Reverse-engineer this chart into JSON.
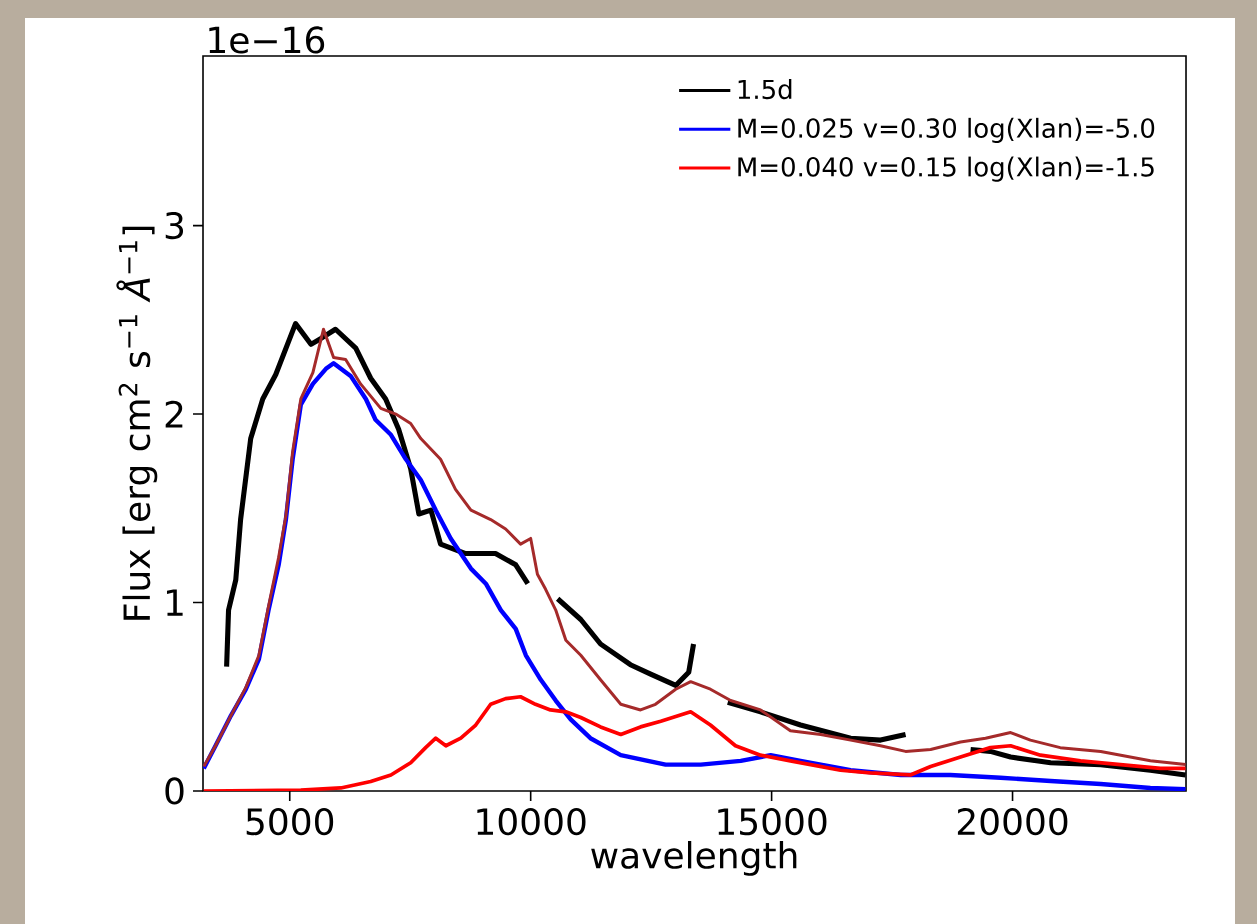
{
  "chart_data": {
    "type": "line",
    "xlabel": "wavelength",
    "ylabel": "Flux [erg cm$^{2}$ s$^{−1}$ *Å*$^{−1}$]",
    "annotations": [
      "1e−16"
    ],
    "xlim": [
      3200,
      23600
    ],
    "ylim": [
      0,
      3.9
    ],
    "xticks": [
      5000,
      10000,
      15000,
      20000
    ],
    "yticks": [
      0,
      1,
      2,
      3
    ],
    "legend": "top right",
    "series": [
      {
        "name": "1.5d",
        "color": "#000000",
        "x": [
          3690,
          3730,
          3880,
          3980,
          4190,
          4440,
          4710,
          5120,
          5440,
          5640,
          5950,
          6370,
          6680,
          6990,
          7260,
          7510,
          7680,
          7930,
          8130,
          8650,
          9270,
          9690,
          9940,
          10250,
          10560,
          11040,
          11450,
          12070,
          12490,
          13010,
          13280,
          13380,
          13700,
          14090,
          14770,
          15600,
          16640,
          17260,
          17780,
          18400,
          19130,
          19540,
          19960,
          20790,
          21830,
          22860,
          23590
        ],
        "values": [
          0.66,
          0.96,
          1.12,
          1.44,
          1.87,
          2.08,
          2.21,
          2.48,
          2.37,
          2.4,
          2.45,
          2.35,
          2.19,
          2.08,
          1.92,
          1.71,
          1.47,
          1.49,
          1.31,
          1.26,
          1.26,
          1.2,
          1.1,
          null,
          1.02,
          0.91,
          0.78,
          0.67,
          0.62,
          0.56,
          0.63,
          0.78,
          null,
          0.47,
          0.42,
          0.35,
          0.28,
          0.27,
          0.3,
          null,
          0.22,
          0.21,
          0.18,
          0.15,
          0.14,
          0.11,
          0.085
        ]
      },
      {
        "name": "M=0.025 v=0.30 log(Xlan)=-5.0",
        "color": "#0000ff",
        "x": [
          3216,
          3460,
          3780,
          4090,
          4360,
          4560,
          4770,
          4920,
          5060,
          5230,
          5480,
          5750,
          5910,
          6270,
          6580,
          6780,
          7100,
          7410,
          7720,
          8030,
          8340,
          8760,
          9070,
          9380,
          9690,
          9900,
          10210,
          10520,
          10830,
          11240,
          11870,
          12800,
          13530,
          14360,
          14980,
          15600,
          16640,
          17680,
          18710,
          19750,
          20790,
          21830,
          22860,
          23590
        ],
        "values": [
          0.12,
          0.24,
          0.4,
          0.54,
          0.7,
          0.96,
          1.2,
          1.44,
          1.76,
          2.05,
          2.16,
          2.24,
          2.27,
          2.2,
          2.08,
          1.97,
          1.89,
          1.76,
          1.65,
          1.49,
          1.34,
          1.18,
          1.1,
          0.96,
          0.86,
          0.72,
          0.59,
          0.48,
          0.38,
          0.28,
          0.19,
          0.14,
          0.14,
          0.16,
          0.19,
          0.16,
          0.11,
          0.085,
          0.085,
          0.07,
          0.053,
          0.037,
          0.016,
          0.01
        ]
      },
      {
        "name": "M=0.040 v=0.15 log(Xlan)=-1.5",
        "color": "#ff0000",
        "x": [
          3216,
          5230,
          6060,
          6680,
          7100,
          7510,
          7820,
          8030,
          8240,
          8550,
          8860,
          9170,
          9480,
          9790,
          10100,
          10410,
          10730,
          11040,
          11450,
          11870,
          12280,
          12700,
          13320,
          13730,
          14250,
          14770,
          15390,
          15810,
          16430,
          17050,
          17880,
          18300,
          18920,
          19540,
          19960,
          20580,
          21410,
          22240,
          23070,
          23590
        ],
        "values": [
          0,
          0.005,
          0.016,
          0.05,
          0.085,
          0.15,
          0.23,
          0.28,
          0.24,
          0.28,
          0.35,
          0.46,
          0.49,
          0.5,
          0.46,
          0.43,
          0.42,
          0.39,
          0.34,
          0.3,
          0.34,
          0.37,
          0.42,
          0.35,
          0.24,
          0.19,
          0.16,
          0.14,
          0.11,
          0.096,
          0.085,
          0.13,
          0.18,
          0.23,
          0.24,
          0.19,
          0.16,
          0.14,
          0.12,
          0.12
        ]
      },
      {
        "color": "#a52a2a",
        "x": [
          3216,
          3460,
          3780,
          4090,
          4360,
          4560,
          4770,
          4920,
          5060,
          5230,
          5480,
          5700,
          5910,
          6160,
          6470,
          6890,
          7200,
          7510,
          7720,
          8130,
          8440,
          8760,
          9170,
          9480,
          9790,
          10000,
          10140,
          10310,
          10520,
          10730,
          11040,
          11450,
          11870,
          12280,
          12590,
          13010,
          13320,
          13730,
          14150,
          14770,
          15390,
          16020,
          16640,
          17260,
          17780,
          18300,
          18920,
          19440,
          19960,
          20370,
          20990,
          21830,
          22860,
          23590
        ],
        "values": [
          0.13,
          0.24,
          0.4,
          0.55,
          0.72,
          0.98,
          1.24,
          1.46,
          1.8,
          2.08,
          2.22,
          2.45,
          2.3,
          2.29,
          2.16,
          2.03,
          2.0,
          1.95,
          1.87,
          1.76,
          1.6,
          1.49,
          1.44,
          1.39,
          1.31,
          1.34,
          1.15,
          1.07,
          0.96,
          0.8,
          0.72,
          0.59,
          0.46,
          0.43,
          0.46,
          0.54,
          0.58,
          0.54,
          0.48,
          0.43,
          0.32,
          0.3,
          0.27,
          0.24,
          0.21,
          0.22,
          0.26,
          0.28,
          0.31,
          0.27,
          0.23,
          0.21,
          0.16,
          0.14
        ]
      }
    ]
  }
}
